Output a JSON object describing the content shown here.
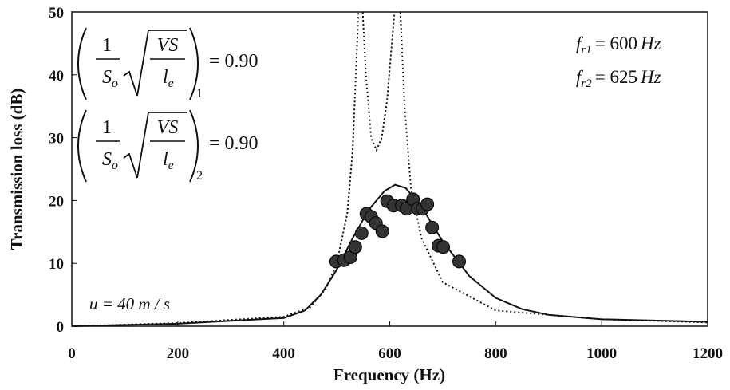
{
  "chart_data": {
    "type": "line",
    "xlabel": "Frequency (Hz)",
    "ylabel": "Transmission loss (dB)",
    "xlim": [
      0,
      1200
    ],
    "xticks": [
      0,
      200,
      400,
      600,
      800,
      1000,
      1200
    ],
    "ylim": [
      0,
      50
    ],
    "yticks": [
      0,
      10,
      20,
      30,
      40,
      50
    ],
    "series": [
      {
        "kind": "dotted",
        "color": "#111",
        "x": [
          0,
          200,
          400,
          450,
          480,
          500,
          520,
          530,
          537,
          541,
          545,
          549,
          555,
          565,
          575,
          585,
          595,
          605,
          609,
          615,
          620,
          628,
          640,
          660,
          700,
          800,
          1000,
          1200
        ],
        "values": [
          0,
          0.5,
          1.5,
          3,
          6,
          10,
          18,
          28,
          42,
          50,
          null,
          50,
          40,
          30,
          28,
          30,
          36,
          46,
          50,
          null,
          50,
          35,
          22,
          14,
          7,
          2.5,
          1.1,
          0.6
        ]
      },
      {
        "kind": "solid",
        "color": "#111",
        "x": [
          0,
          200,
          400,
          440,
          470,
          500,
          530,
          560,
          590,
          610,
          630,
          660,
          700,
          750,
          800,
          850,
          900,
          1000,
          1200
        ],
        "values": [
          0,
          0.4,
          1.3,
          2.5,
          5,
          9,
          14,
          18.5,
          21.5,
          22.5,
          22,
          19,
          13.5,
          8,
          4.5,
          2.7,
          1.8,
          1.1,
          0.7
        ]
      },
      {
        "kind": "markers",
        "color": "#333",
        "x": [
          499,
          514,
          526,
          535,
          547,
          556,
          565,
          574,
          586,
          595,
          607,
          623,
          632,
          644,
          653,
          662,
          671,
          680,
          692,
          701,
          731
        ],
        "values": [
          10.3,
          10.5,
          11,
          12.6,
          14.8,
          17.9,
          17.4,
          16.4,
          15.1,
          19.9,
          19.2,
          19.2,
          18.7,
          20.2,
          18.7,
          18.7,
          19.4,
          15.7,
          12.8,
          12.6,
          10.3
        ]
      }
    ],
    "formula": {
      "numerator": "1",
      "denominator": "S",
      "denominator_sub": "o",
      "root_top": "VS",
      "root_bottom": "l",
      "root_bottom_sub": "e"
    },
    "formula_values": [
      {
        "index": "1",
        "value": "= 0.90"
      },
      {
        "index": "2",
        "value": "= 0.90"
      }
    ],
    "frequencies": [
      {
        "symbol": "f",
        "sub": "r1",
        "value": "= 600",
        "unit": "Hz"
      },
      {
        "symbol": "f",
        "sub": "r2",
        "value": "= 625",
        "unit": "Hz"
      }
    ],
    "flow": "u = 40 m / s"
  }
}
